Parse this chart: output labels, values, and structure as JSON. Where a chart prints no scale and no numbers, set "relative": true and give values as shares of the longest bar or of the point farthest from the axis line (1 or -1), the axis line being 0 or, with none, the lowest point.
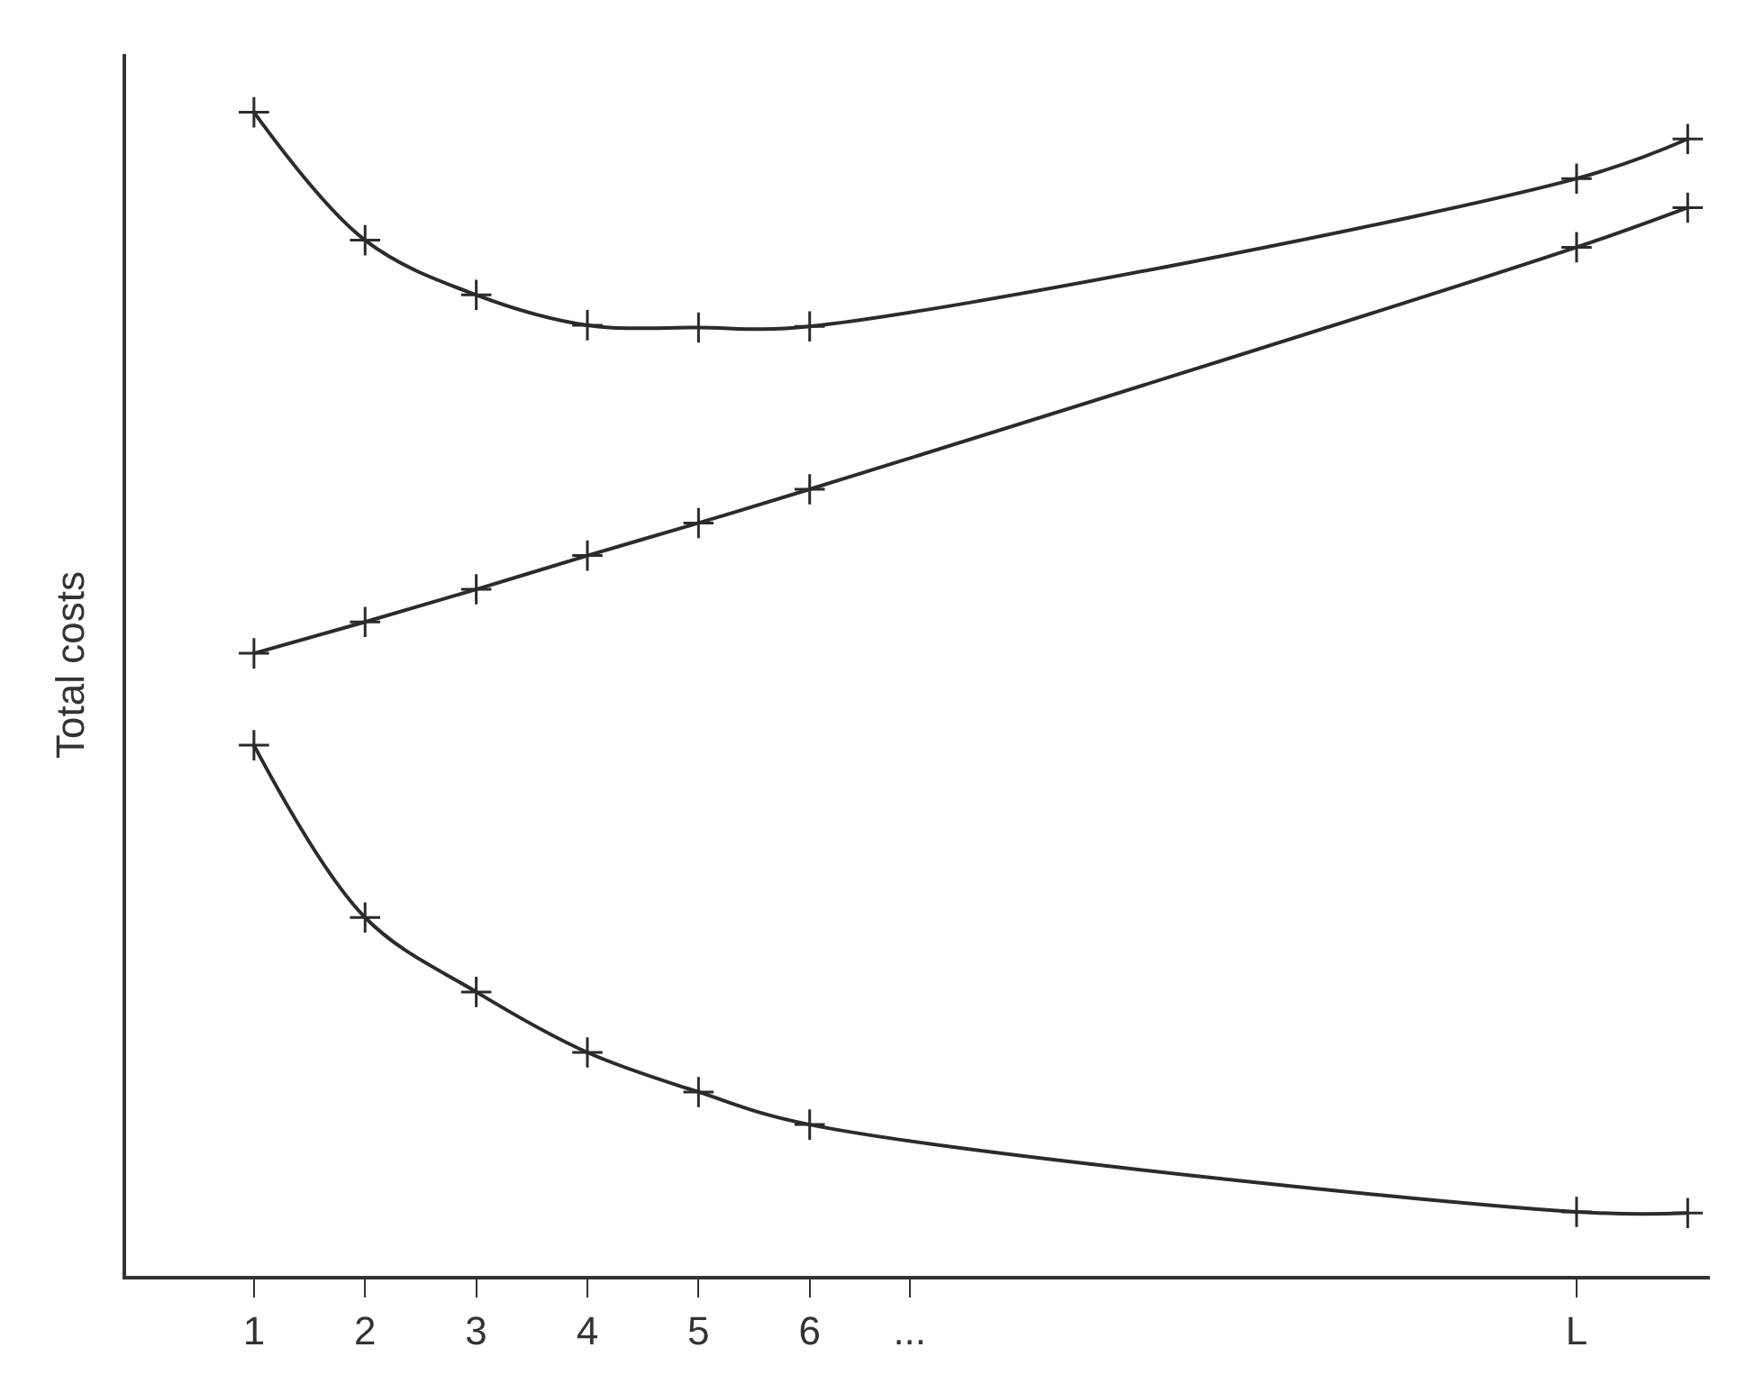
{
  "chart_data": {
    "type": "line",
    "relative": true,
    "ylabel": "Total costs",
    "x": [
      1,
      2,
      3,
      4,
      5,
      6,
      12.9,
      13.9
    ],
    "xlim": [
      -0.15,
      14.1
    ],
    "xticks": [
      1,
      2,
      3,
      4,
      5,
      6,
      {
        "value": 6.9,
        "label": "..."
      },
      {
        "value": 12.9,
        "label": "L"
      }
    ],
    "series": [
      {
        "color": "#2b2b2b",
        "values": [
          0.456,
          0.308,
          0.244,
          0.192,
          0.158,
          0.13,
          0.055,
          0.054
        ]
      },
      {
        "color": "#2b2b2b",
        "values": [
          0.535,
          0.562,
          0.59,
          0.619,
          0.647,
          0.676,
          0.884,
          0.918
        ]
      },
      {
        "color": "#2b2b2b",
        "values": [
          1,
          0.89,
          0.843,
          0.817,
          0.815,
          0.816,
          0.943,
          0.977
        ]
      }
    ],
    "marker": "cross",
    "line_style": "solid"
  }
}
